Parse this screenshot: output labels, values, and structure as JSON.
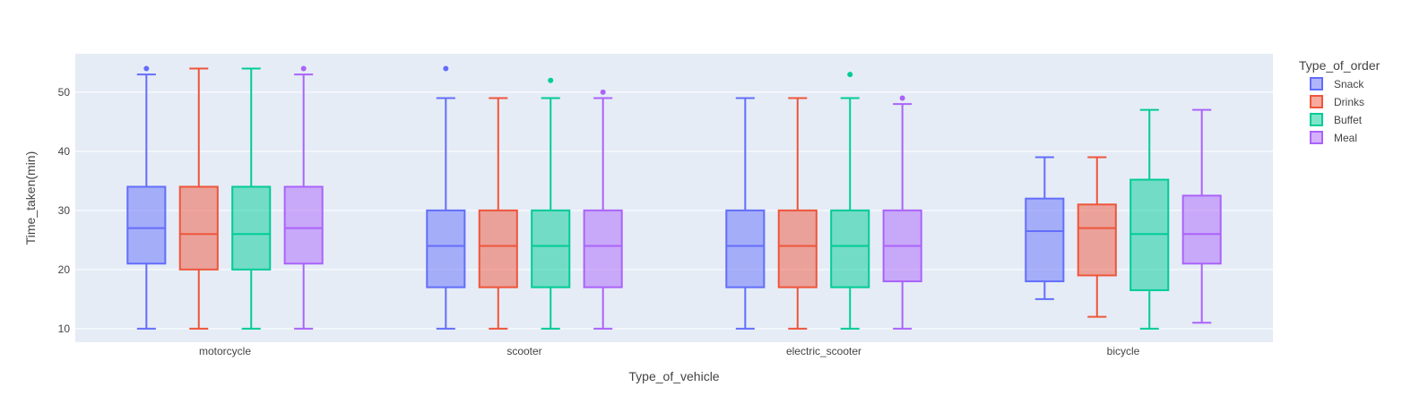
{
  "chart_data": {
    "type": "box",
    "title": "",
    "xlabel": "Type_of_vehicle",
    "ylabel": "Time_taken(min)",
    "categories": [
      "motorcycle",
      "scooter",
      "electric_scooter",
      "bicycle"
    ],
    "ylim": [
      7.7,
      56.5
    ],
    "yticks": [
      10,
      20,
      30,
      40,
      50
    ],
    "grid": true,
    "legend_title": "Type_of_order",
    "legend_position": "right",
    "series": [
      {
        "name": "Snack",
        "color": "#636efa",
        "boxes": [
          {
            "min": 10,
            "q1": 21,
            "median": 27,
            "q3": 34,
            "max": 53,
            "outliers": [
              54
            ]
          },
          {
            "min": 10,
            "q1": 17,
            "median": 24,
            "q3": 30,
            "max": 49,
            "outliers": [
              54
            ]
          },
          {
            "min": 10,
            "q1": 17,
            "median": 24,
            "q3": 30,
            "max": 49,
            "outliers": []
          },
          {
            "min": 15,
            "q1": 18,
            "median": 26.5,
            "q3": 32,
            "max": 39,
            "outliers": []
          }
        ]
      },
      {
        "name": "Drinks",
        "color": "#ef553b",
        "boxes": [
          {
            "min": 10,
            "q1": 20,
            "median": 26,
            "q3": 34,
            "max": 54,
            "outliers": []
          },
          {
            "min": 10,
            "q1": 17,
            "median": 24,
            "q3": 30,
            "max": 49,
            "outliers": []
          },
          {
            "min": 10,
            "q1": 17,
            "median": 24,
            "q3": 30,
            "max": 49,
            "outliers": []
          },
          {
            "min": 12,
            "q1": 19,
            "median": 27,
            "q3": 31,
            "max": 39,
            "outliers": []
          }
        ]
      },
      {
        "name": "Buffet",
        "color": "#00cc96",
        "boxes": [
          {
            "min": 10,
            "q1": 20,
            "median": 26,
            "q3": 34,
            "max": 54,
            "outliers": []
          },
          {
            "min": 10,
            "q1": 17,
            "median": 24,
            "q3": 30,
            "max": 49,
            "outliers": [
              52
            ]
          },
          {
            "min": 10,
            "q1": 17,
            "median": 24,
            "q3": 30,
            "max": 49,
            "outliers": [
              53
            ]
          },
          {
            "min": 10,
            "q1": 16.5,
            "median": 26,
            "q3": 35.2,
            "max": 47,
            "outliers": []
          }
        ]
      },
      {
        "name": "Meal",
        "color": "#ab63fa",
        "boxes": [
          {
            "min": 10,
            "q1": 21,
            "median": 27,
            "q3": 34,
            "max": 53,
            "outliers": [
              54
            ]
          },
          {
            "min": 10,
            "q1": 17,
            "median": 24,
            "q3": 30,
            "max": 49,
            "outliers": [
              50
            ]
          },
          {
            "min": 10,
            "q1": 18,
            "median": 24,
            "q3": 30,
            "max": 48,
            "outliers": [
              49
            ]
          },
          {
            "min": 11,
            "q1": 21,
            "median": 26,
            "q3": 32.5,
            "max": 47,
            "outliers": []
          }
        ]
      }
    ]
  }
}
